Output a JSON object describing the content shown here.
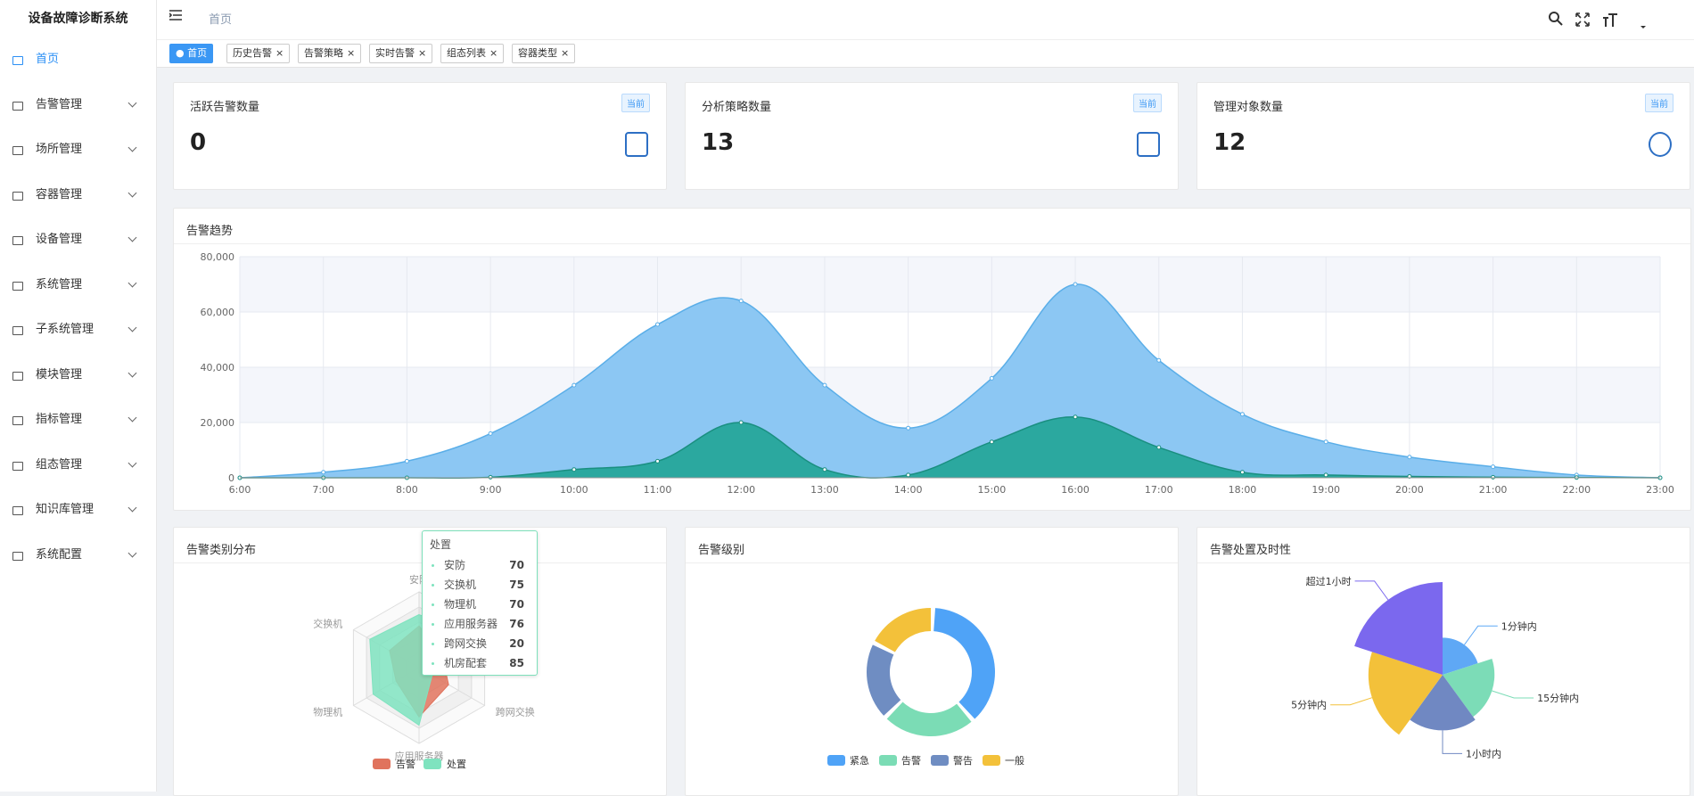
{
  "sidebar": {
    "title": "设备故障诊断系统",
    "menu": [
      "首页",
      "告警管理",
      "场所管理",
      "容器管理",
      "设备管理",
      "系统管理",
      "子系统管理",
      "模块管理",
      "指标管理",
      "组态管理",
      "知识库管理",
      "系统配置"
    ]
  },
  "header": {
    "breadcrumb": "首页"
  },
  "tabs": [
    "首页",
    "历史告警",
    "告警策略",
    "实时告警",
    "组态列表",
    "容器类型"
  ],
  "stats": [
    {
      "title": "活跃告警数量",
      "value": 0,
      "badge": "当前"
    },
    {
      "title": "分析策略数量",
      "value": 13,
      "badge": "当前"
    },
    {
      "title": "管理对象数量",
      "value": 12,
      "badge": "当前"
    }
  ],
  "chart_data": [
    {
      "type": "area",
      "title": "告警趋势",
      "categories": [
        "6:00",
        "7:00",
        "8:00",
        "9:00",
        "10:00",
        "11:00",
        "12:00",
        "13:00",
        "14:00",
        "15:00",
        "16:00",
        "17:00",
        "18:00",
        "19:00",
        "20:00",
        "21:00",
        "22:00",
        "23:00"
      ],
      "series": [
        {
          "color": "#8cc7f3",
          "values": [
            0,
            2000,
            6000,
            16000,
            33500,
            55500,
            64000,
            33500,
            18000,
            36000,
            70000,
            42500,
            23000,
            13000,
            7500,
            4000,
            1000,
            0
          ]
        },
        {
          "color": "#26a69a",
          "values": [
            0,
            0,
            0,
            200,
            3000,
            6000,
            20000,
            3000,
            1000,
            13000,
            22000,
            11000,
            2000,
            1000,
            500,
            200,
            100,
            0
          ]
        }
      ],
      "ylim": [
        0,
        80000
      ],
      "yticks": [
        0,
        {
          "value": 20000,
          "label": "20,000"
        },
        {
          "value": 40000,
          "label": "40,000"
        },
        {
          "value": 60000,
          "label": "60,000"
        },
        {
          "value": 80000,
          "label": "80,000"
        }
      ],
      "grid": true
    },
    {
      "type": "radar",
      "title": "告警类别分布",
      "indicators": [
        "安防",
        "交换机",
        "物理机",
        "应用服务器",
        "跨网交换",
        "机房配套"
      ],
      "rlim": [
        0,
        100
      ],
      "series": [
        {
          "name": "告警",
          "color": "#e0735d",
          "values": [
            55,
            45,
            35,
            65,
            45,
            35
          ]
        },
        {
          "name": "处置",
          "color": "#7fe3bf",
          "values": [
            70,
            75,
            70,
            76,
            20,
            85
          ]
        }
      ],
      "legend": "bottom"
    },
    {
      "type": "donut",
      "title": "告警级别",
      "categories": [
        "紧急",
        "告警",
        "警告",
        "一般"
      ],
      "values": [
        38,
        24,
        20,
        18
      ],
      "colors": [
        "#4fa3f7",
        "#7bdcb5",
        "#6f8dc2",
        "#f3c13a"
      ],
      "legend": "bottom"
    },
    {
      "type": "rose",
      "title": "告警处置及时性",
      "categories": [
        "1分钟内",
        "15分钟内",
        "1小时内",
        "5分钟内",
        "超过1小时"
      ],
      "values": [
        10,
        14,
        15,
        20,
        25
      ],
      "colors": [
        "#5fa8f5",
        "#7cdcb7",
        "#7088c2",
        "#f3c13a",
        "#7b68ee"
      ]
    }
  ]
}
